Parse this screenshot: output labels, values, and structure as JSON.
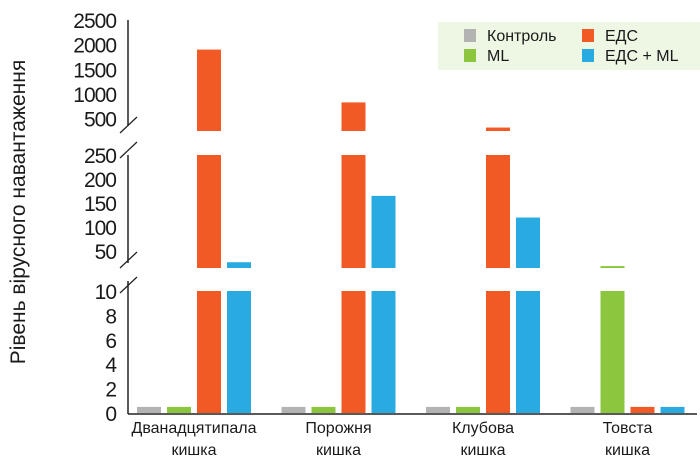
{
  "chart_data": {
    "type": "bar",
    "title": "",
    "xlabel": "",
    "ylabel": "Рівень вірусного навантаження",
    "categories": [
      [
        "Дванадцятипала",
        "кишка"
      ],
      [
        "Порожня",
        "кишка"
      ],
      [
        "Клубова",
        "кишка"
      ],
      [
        "Товста",
        "кишка"
      ]
    ],
    "series": [
      {
        "name": "Контроль",
        "color": "#b3b3b3",
        "values": [
          0.5,
          0.5,
          0.5,
          0.5
        ]
      },
      {
        "name": "ML",
        "color": "#8cc63f",
        "values": [
          0.5,
          0.5,
          0.5,
          19
        ]
      },
      {
        "name": "ЕДС",
        "color": "#f15a24",
        "values": [
          1900,
          830,
          320,
          0.5
        ]
      },
      {
        "name": "ЕДС + ML",
        "color": "#29abe2",
        "values": [
          27,
          165,
          120,
          0.5
        ]
      }
    ],
    "y_axis_broken": true,
    "y_segments": [
      {
        "range": [
          0,
          10
        ],
        "ticks": [
          "0",
          "2",
          "4",
          "6",
          "8",
          "10"
        ]
      },
      {
        "range": [
          15,
          250
        ],
        "ticks": [
          "50",
          "100",
          "150",
          "200",
          "250"
        ]
      },
      {
        "range": [
          250,
          2500
        ],
        "ticks": [
          "500",
          "1000",
          "1500",
          "2000",
          "2500"
        ]
      }
    ],
    "legend_placement": "top-right",
    "legend_background": "#eef6e4",
    "grid": false
  }
}
